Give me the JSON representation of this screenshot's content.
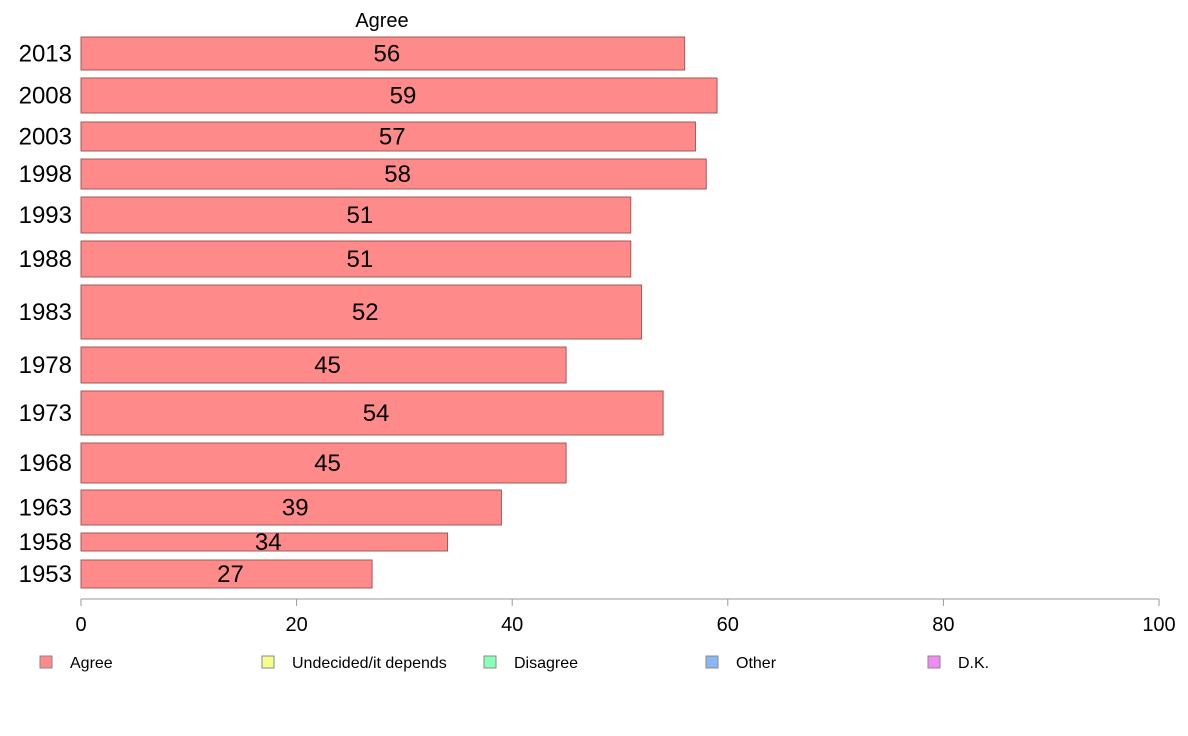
{
  "chart_data": {
    "type": "bar",
    "orientation": "horizontal",
    "title": "Agree",
    "categories": [
      "2013",
      "2008",
      "2003",
      "1998",
      "1993",
      "1988",
      "1983",
      "1978",
      "1973",
      "1968",
      "1963",
      "1958",
      "1953"
    ],
    "series": [
      {
        "name": "Agree",
        "values": [
          56,
          59,
          57,
          58,
          51,
          51,
          52,
          45,
          54,
          45,
          39,
          34,
          27
        ],
        "value_labels": [
          "56",
          "59",
          "57",
          "58",
          "51",
          "51",
          "52",
          "45",
          "54",
          "45",
          "39",
          "34",
          "27"
        ]
      }
    ],
    "xlim": [
      0,
      100
    ],
    "x_ticks": [
      "0",
      "20",
      "40",
      "60",
      "80",
      "100"
    ],
    "grid": false,
    "legend_position": "bottom",
    "legend": [
      {
        "label": "Agree",
        "color": "#ff8a8a"
      },
      {
        "label": "Undecided/it depends",
        "color": "#f5ff8f"
      },
      {
        "label": "Disagree",
        "color": "#8affb5"
      },
      {
        "label": "Other",
        "color": "#8ab8f5"
      },
      {
        "label": "D.K.",
        "color": "#f08af5"
      }
    ],
    "bar_color": "#ff8a8a",
    "bar_border_color": "#a05a5a"
  }
}
